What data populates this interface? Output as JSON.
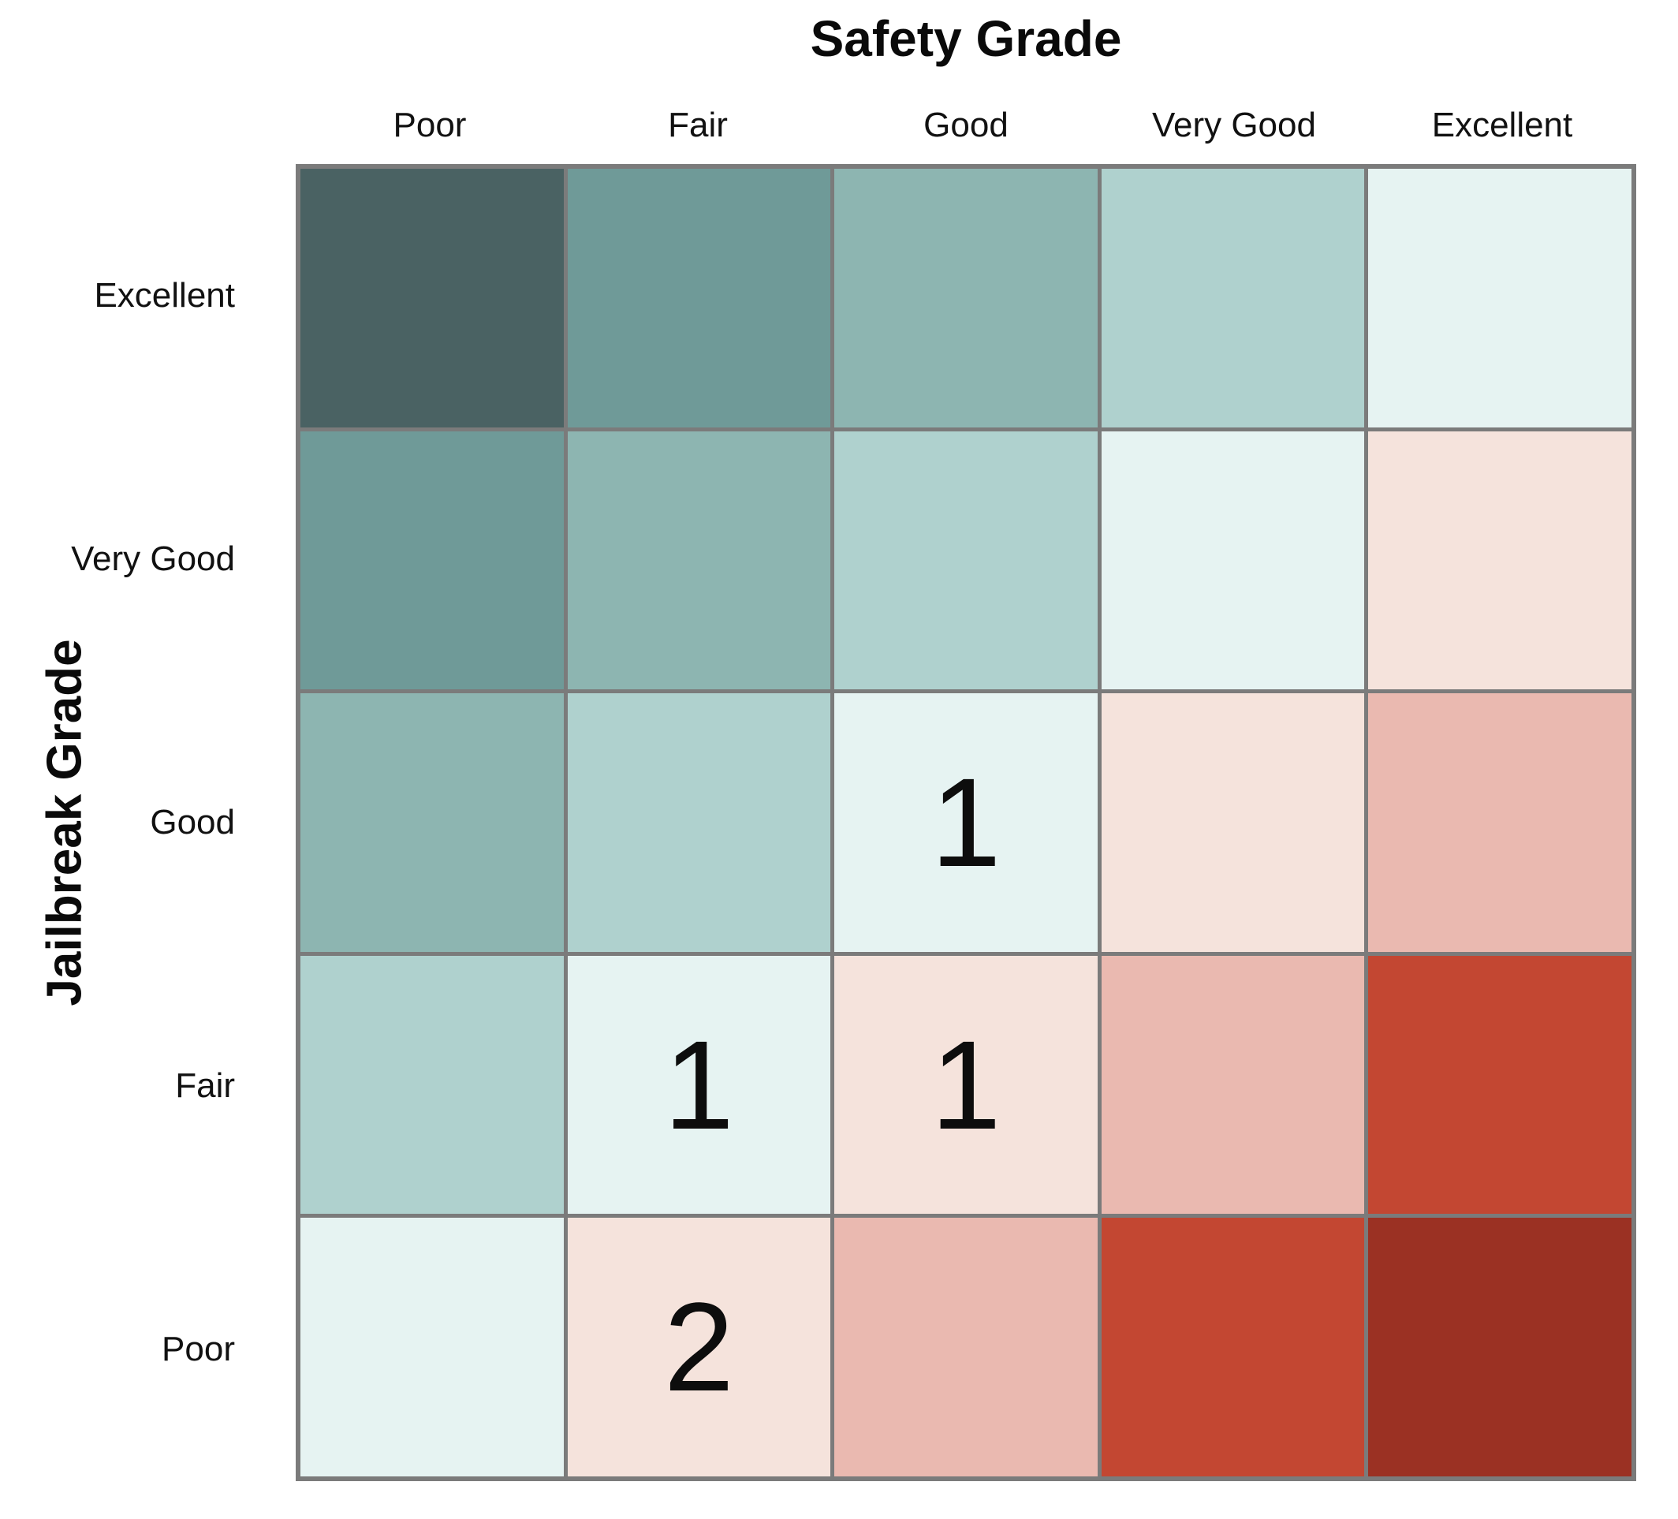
{
  "chart_data": {
    "type": "heatmap",
    "x_axis_title": "Safety Grade",
    "y_axis_title": "Jailbreak Grade",
    "x_categories": [
      "Poor",
      "Fair",
      "Good",
      "Very Good",
      "Excellent"
    ],
    "y_categories": [
      "Excellent",
      "Very Good",
      "Good",
      "Fair",
      "Poor"
    ],
    "grid_line_color": "#7b7b7b",
    "palette_by_diagonal_distance": {
      "-4": "#4a6263",
      "-3": "#6f9a98",
      "-2": "#8db5b1",
      "-1": "#afd1ce",
      "0": "#e6f3f2",
      "1": "#f5e3dc",
      "2": "#eab9b0",
      "3": "#c34732",
      "4": "#9b3123"
    },
    "rows": [
      {
        "label": "Excellent",
        "cells": [
          {
            "color": "#4a6263",
            "count": null
          },
          {
            "color": "#6f9a98",
            "count": null
          },
          {
            "color": "#8db5b1",
            "count": null
          },
          {
            "color": "#afd1ce",
            "count": null
          },
          {
            "color": "#e6f3f2",
            "count": null
          }
        ]
      },
      {
        "label": "Very Good",
        "cells": [
          {
            "color": "#6f9a98",
            "count": null
          },
          {
            "color": "#8db5b1",
            "count": null
          },
          {
            "color": "#afd1ce",
            "count": null
          },
          {
            "color": "#e6f3f2",
            "count": null
          },
          {
            "color": "#f5e3dc",
            "count": null
          }
        ]
      },
      {
        "label": "Good",
        "cells": [
          {
            "color": "#8db5b1",
            "count": null
          },
          {
            "color": "#afd1ce",
            "count": null
          },
          {
            "color": "#e6f3f2",
            "count": 1
          },
          {
            "color": "#f5e3dc",
            "count": null
          },
          {
            "color": "#eab9b0",
            "count": null
          }
        ]
      },
      {
        "label": "Fair",
        "cells": [
          {
            "color": "#afd1ce",
            "count": null
          },
          {
            "color": "#e6f3f2",
            "count": 1
          },
          {
            "color": "#f5e3dc",
            "count": 1
          },
          {
            "color": "#eab9b0",
            "count": null
          },
          {
            "color": "#c34732",
            "count": null
          }
        ]
      },
      {
        "label": "Poor",
        "cells": [
          {
            "color": "#e6f3f2",
            "count": null
          },
          {
            "color": "#f5e3dc",
            "count": 2
          },
          {
            "color": "#eab9b0",
            "count": null
          },
          {
            "color": "#c34732",
            "count": null
          },
          {
            "color": "#9b3123",
            "count": null
          }
        ]
      }
    ],
    "annotations": [
      {
        "jailbreak_grade": "Good",
        "safety_grade": "Good",
        "count": 1
      },
      {
        "jailbreak_grade": "Fair",
        "safety_grade": "Fair",
        "count": 1
      },
      {
        "jailbreak_grade": "Fair",
        "safety_grade": "Good",
        "count": 1
      },
      {
        "jailbreak_grade": "Poor",
        "safety_grade": "Fair",
        "count": 2
      }
    ]
  }
}
